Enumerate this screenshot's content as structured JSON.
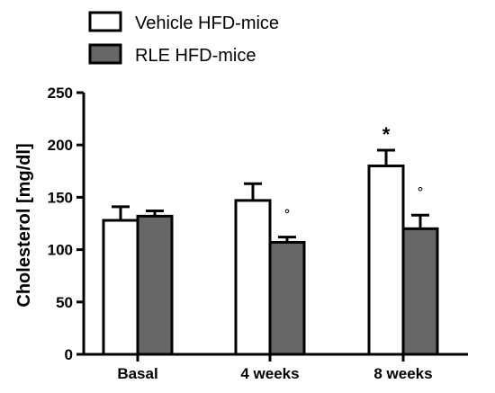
{
  "chart_data": {
    "type": "bar",
    "categories": [
      "Basal",
      "4 weeks",
      "8 weeks"
    ],
    "series": [
      {
        "name": "Vehicle HFD-mice",
        "values": [
          128,
          147,
          180
        ],
        "errors": [
          13,
          16,
          15
        ],
        "fill": "#ffffff"
      },
      {
        "name": "RLE HFD-mice",
        "values": [
          132,
          107,
          120
        ],
        "errors": [
          5,
          5,
          13
        ],
        "fill": "#666666"
      }
    ],
    "annotations": [
      {
        "category": "8 weeks",
        "series": "Vehicle HFD-mice",
        "symbol": "*"
      },
      {
        "category": "4 weeks",
        "series": "RLE HFD-mice",
        "symbol": "°"
      },
      {
        "category": "8 weeks",
        "series": "RLE HFD-mice",
        "symbol": "°"
      }
    ],
    "ylabel": "Cholesterol [mg/dl]",
    "xlabel": "",
    "ylim": [
      0,
      250
    ],
    "yticks": [
      0,
      50,
      100,
      150,
      200,
      250
    ],
    "grid": false,
    "legend_position": "top-left"
  }
}
